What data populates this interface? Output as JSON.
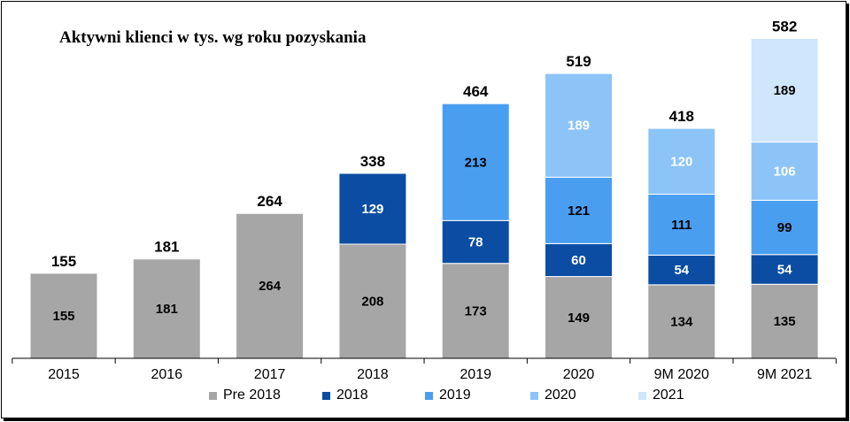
{
  "chart_data": {
    "type": "bar",
    "stacked": true,
    "title": "Aktywni klienci w tys. wg roku pozyskania",
    "categories": [
      "2015",
      "2016",
      "2017",
      "2018",
      "2019",
      "2020",
      "9M 2020",
      "9M 2021"
    ],
    "totals": [
      155,
      181,
      264,
      338,
      464,
      519,
      418,
      582
    ],
    "series": [
      {
        "name": "Pre 2018",
        "color": "#a6a6a6",
        "label_color": "#000000",
        "values": [
          155,
          181,
          264,
          208,
          173,
          149,
          134,
          135
        ]
      },
      {
        "name": "2018",
        "color": "#0a4da3",
        "label_color": "#ffffff",
        "values": [
          null,
          null,
          null,
          129,
          78,
          60,
          54,
          54
        ]
      },
      {
        "name": "2019",
        "color": "#4a9ef0",
        "label_color": "#000000",
        "values": [
          null,
          null,
          null,
          null,
          213,
          121,
          111,
          99
        ]
      },
      {
        "name": "2020",
        "color": "#8cc4f8",
        "label_color": "#ffffff",
        "values": [
          null,
          null,
          null,
          null,
          null,
          189,
          120,
          106
        ]
      },
      {
        "name": "2021",
        "color": "#cfe6fc",
        "label_color": "#000000",
        "values": [
          null,
          null,
          null,
          null,
          null,
          null,
          null,
          189
        ]
      }
    ],
    "ylim": [
      0,
      582
    ],
    "legend_position": "bottom"
  }
}
